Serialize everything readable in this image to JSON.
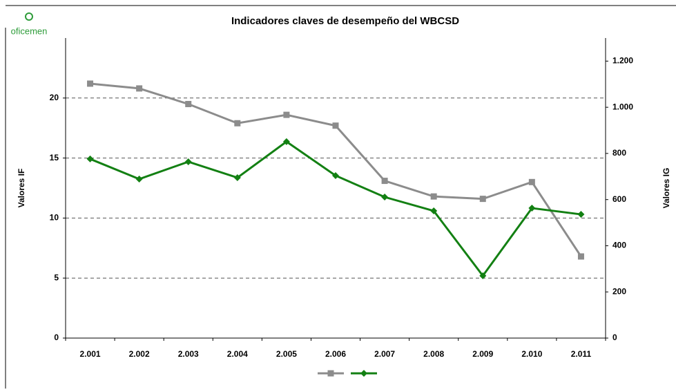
{
  "logo": "oficemen",
  "chart_data": {
    "type": "line",
    "title": "Indicadores claves de desempeño del WBCSD",
    "y_label": "Valores IF",
    "y2_label": "Valores IG",
    "categories": [
      "2.001",
      "2.002",
      "2.003",
      "2.004",
      "2.005",
      "2.006",
      "2.007",
      "2.008",
      "2.009",
      "2.010",
      "2.011"
    ],
    "series": [
      {
        "color": "#8c8c8c",
        "marker": "square",
        "axis": "y",
        "values": [
          21.2,
          20.8,
          19.5,
          17.9,
          18.6,
          17.7,
          13.1,
          11.8,
          11.6,
          13.0,
          6.8
        ]
      },
      {
        "color": "#138013",
        "marker": "diamond",
        "axis": "y2",
        "values": [
          776,
          689,
          764,
          695,
          851,
          704,
          611,
          551,
          270,
          563,
          536
        ]
      }
    ],
    "ylim": [
      0,
      25
    ],
    "yticks": [
      0,
      5,
      10,
      15,
      20
    ],
    "y2lim": [
      0,
      1300
    ],
    "y2ticks": [
      0,
      200,
      400,
      600,
      800,
      {
        "value": 1000,
        "label": "1.000"
      },
      {
        "value": 1200,
        "label": "1.200"
      }
    ],
    "grid": true,
    "legend": "bottom"
  }
}
